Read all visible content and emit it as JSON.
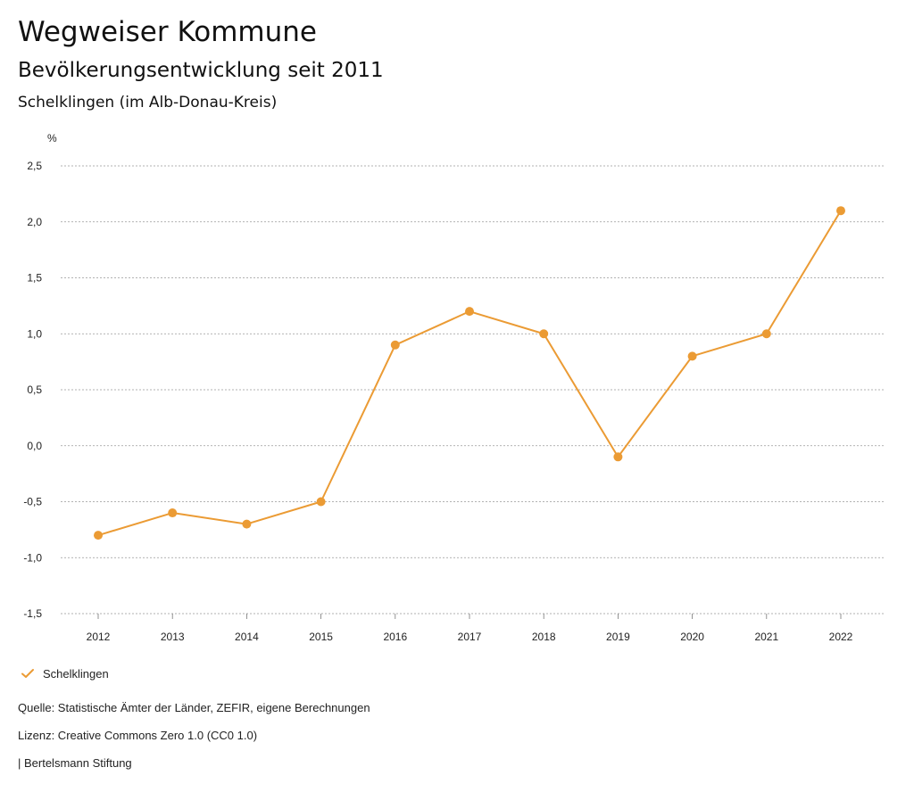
{
  "header": {
    "title": "Wegweiser Kommune",
    "subtitle": "Bevölkerungsentwicklung seit 2011",
    "region": "Schelklingen (im Alb-Donau-Kreis)"
  },
  "chart_data": {
    "type": "line",
    "title": "Bevölkerungsentwicklung seit 2011",
    "xlabel": "",
    "ylabel": "%",
    "categories": [
      "2012",
      "2013",
      "2014",
      "2015",
      "2016",
      "2017",
      "2018",
      "2019",
      "2020",
      "2021",
      "2022"
    ],
    "series": [
      {
        "name": "Schelklingen",
        "color": "#eb9b34",
        "values": [
          -0.8,
          -0.6,
          -0.7,
          -0.5,
          0.9,
          1.2,
          1.0,
          -0.1,
          0.8,
          1.0,
          2.1
        ]
      }
    ],
    "ylim": [
      -1.5,
      2.5
    ],
    "yticks": [
      2.5,
      2.0,
      1.5,
      1.0,
      0.5,
      0.0,
      -0.5,
      -1.0,
      -1.5
    ],
    "ytick_labels": [
      "2,5",
      "2,0",
      "1,5",
      "1,0",
      "0,5",
      "0,0",
      "-0,5",
      "-1,0",
      "-1,5"
    ],
    "grid": true,
    "legend": "bottom-left"
  },
  "legend": {
    "label": "Schelklingen",
    "icon": "check-icon"
  },
  "footer": {
    "source": "Quelle: Statistische Ämter der Länder, ZEFIR, eigene Berechnungen",
    "license": "Lizenz: Creative Commons Zero 1.0 (CC0 1.0)",
    "brand": "| Bertelsmann Stiftung"
  }
}
